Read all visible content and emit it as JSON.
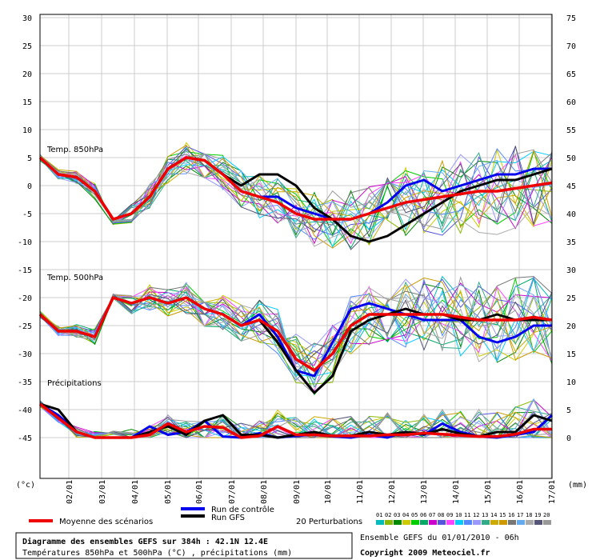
{
  "chart_data": {
    "type": "line",
    "left_axis": {
      "unit": "(°c)",
      "ticks": [
        "30",
        "25",
        "20",
        "15",
        "10",
        "5",
        "0",
        "-5",
        "-10",
        "-15",
        "-20",
        "-25",
        "-30",
        "-35",
        "-40",
        "-45"
      ]
    },
    "right_axis": {
      "unit": "(mm)",
      "ticks": [
        "75",
        "70",
        "65",
        "60",
        "55",
        "50",
        "45",
        "40",
        "35",
        "30",
        "25",
        "20",
        "15",
        "10",
        "5",
        "0"
      ]
    },
    "x_ticks": [
      "02/01",
      "03/01",
      "04/01",
      "05/01",
      "06/01",
      "07/01",
      "08/01",
      "09/01",
      "10/01",
      "11/01",
      "12/01",
      "13/01",
      "14/01",
      "15/01",
      "16/01",
      "17/01"
    ],
    "x_hours": [
      0,
      384
    ],
    "grid": true,
    "panels": [
      {
        "label": "Temp. 850hPa",
        "axis": "left",
        "mean_scenarios": [
          5,
          2,
          1.5,
          -1,
          -6,
          -5,
          -2,
          3,
          5,
          4.5,
          2,
          -1,
          -2,
          -3,
          -5,
          -6,
          -6,
          -6,
          -5,
          -4,
          -3,
          -2.5,
          -2,
          -1.5,
          -1,
          -1,
          -0.5,
          0,
          0.5
        ],
        "control_run": [
          5,
          2,
          1.5,
          -1,
          -6,
          -5,
          -2,
          3,
          5,
          4.5,
          2,
          -1,
          -2,
          -2,
          -4,
          -5,
          -6,
          -6,
          -5,
          -3,
          0,
          1,
          -1,
          0,
          1,
          2,
          2,
          3,
          3
        ],
        "gfs_run": [
          5,
          2,
          1.5,
          -1,
          -6,
          -5,
          -2,
          3,
          5,
          4.5,
          2,
          0,
          2,
          2,
          0,
          -4,
          -6,
          -9,
          -10,
          -9,
          -7,
          -5,
          -3,
          -1,
          0,
          1,
          1,
          2,
          3
        ]
      },
      {
        "label": "Temp. 500hPa",
        "axis": "left",
        "mean_scenarios": [
          -23,
          -26,
          -26,
          -27,
          -20,
          -21,
          -20,
          -21,
          -20,
          -22,
          -23,
          -25,
          -24,
          -26,
          -31,
          -33,
          -30,
          -25,
          -23,
          -23,
          -23,
          -23,
          -23,
          -23.5,
          -24,
          -24,
          -24,
          -23.5,
          -24
        ],
        "control_run": [
          -23,
          -26,
          -26,
          -27,
          -20,
          -21,
          -20,
          -21,
          -20,
          -22,
          -23,
          -25,
          -23,
          -27,
          -33,
          -34,
          -28,
          -22,
          -21,
          -22,
          -23,
          -24,
          -24,
          -24,
          -27,
          -28,
          -27,
          -25,
          -25
        ],
        "gfs_run": [
          -23,
          -26,
          -26,
          -27,
          -20,
          -21,
          -20,
          -21,
          -20,
          -22,
          -23,
          -25,
          -24,
          -28,
          -33,
          -37,
          -34,
          -26,
          -24,
          -23,
          -22,
          -23,
          -23,
          -24,
          -24,
          -23,
          -24,
          -24,
          -24
        ]
      },
      {
        "label": "Précipitations",
        "axis": "right",
        "mean_scenarios": [
          6,
          3.5,
          1,
          0,
          0,
          0,
          0.5,
          2.5,
          1,
          2,
          1.8,
          0,
          0.3,
          2,
          0.5,
          0.5,
          0.3,
          0.3,
          0.3,
          0.5,
          0.5,
          0.8,
          0.6,
          0.4,
          0.2,
          0.2,
          0.6,
          1.5,
          1.5
        ],
        "control_run": [
          6,
          4,
          1,
          0,
          0,
          0,
          2,
          0.5,
          1,
          3,
          0.2,
          0,
          0.8,
          0,
          0.3,
          0.5,
          0.2,
          0,
          0.5,
          0,
          1,
          0.5,
          2.5,
          1,
          0.2,
          0,
          0.5,
          1,
          4
        ],
        "gfs_run": [
          6,
          5,
          1,
          0,
          0,
          0,
          1,
          2,
          0.5,
          3,
          4,
          0.5,
          0.5,
          0,
          0.5,
          1,
          0.3,
          0.3,
          1,
          0.5,
          1,
          0.6,
          1.5,
          0.7,
          0.2,
          1,
          1,
          4,
          3
        ]
      }
    ]
  },
  "legend": {
    "mean": {
      "label": "Moyenne des scénarios",
      "color": "#ee0000"
    },
    "control": {
      "label": "Run de contrôle",
      "color": "#0000ee"
    },
    "gfs": {
      "label": "Run GFS",
      "color": "#000000"
    },
    "perturbations": {
      "label": "20 Perturbations",
      "codes": [
        "01",
        "02",
        "03",
        "04",
        "05",
        "06",
        "07",
        "08",
        "09",
        "10",
        "11",
        "12",
        "13",
        "14",
        "15",
        "16",
        "17",
        "18",
        "19",
        "20"
      ],
      "colors": [
        "#00bbbb",
        "#88bb00",
        "#008800",
        "#cccc00",
        "#00cc00",
        "#00aa66",
        "#cc00cc",
        "#5555dd",
        "#ff44ff",
        "#00ccff",
        "#5588ff",
        "#9999ff",
        "#33aa88",
        "#ccaa00",
        "#cc9900",
        "#777777",
        "#66aaee",
        "#aaaaaa",
        "#555577",
        "#999999"
      ]
    }
  },
  "footer": {
    "title": "Diagramme des ensembles GEFS sur 384h : 42.1N 12.4E",
    "subtitle": "Températures 850hPa et 500hPa (°C) , précipitations (mm)",
    "run_info": "Ensemble GEFS du 01/01/2010 - 06h",
    "copyright": "Copyright 2009 Meteociel.fr"
  }
}
